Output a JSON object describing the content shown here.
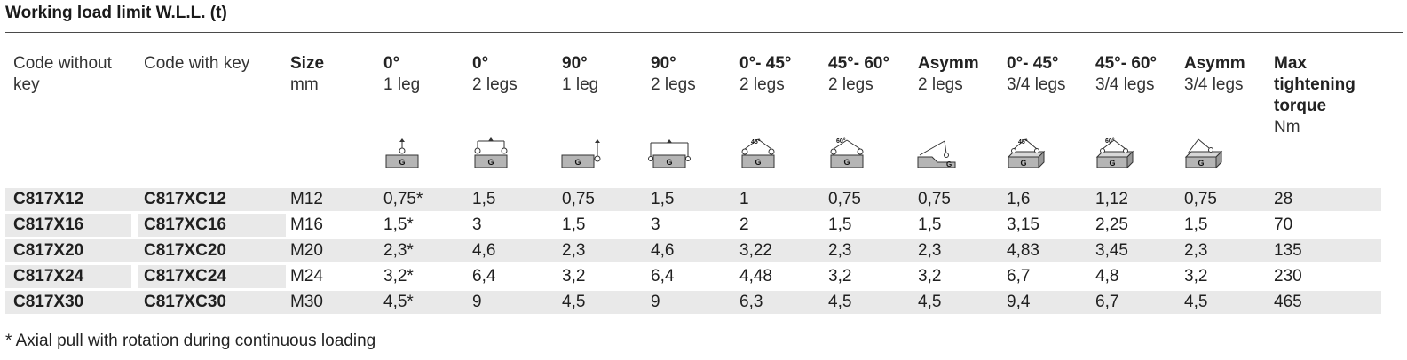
{
  "title": "Working load limit W.L.L. (t)",
  "headers": [
    {
      "bold": "Code without",
      "normal": "",
      "extra_bold": "key"
    },
    {
      "bold": "Code with key",
      "normal": ""
    },
    {
      "bold": "Size",
      "normal": "mm"
    },
    {
      "bold": "0°",
      "normal": "1 leg"
    },
    {
      "bold": "0°",
      "normal": "2 legs"
    },
    {
      "bold": "90°",
      "normal": "1 leg"
    },
    {
      "bold": "90°",
      "normal": "2 legs"
    },
    {
      "bold": "0°- 45°",
      "normal": "2 legs"
    },
    {
      "bold": "45°- 60°",
      "normal": "2 legs"
    },
    {
      "bold": "Asymm",
      "normal": "2 legs"
    },
    {
      "bold": "0°- 45°",
      "normal": "3/4 legs"
    },
    {
      "bold": "45°- 60°",
      "normal": "3/4 legs"
    },
    {
      "bold": "Asymm",
      "normal": "3/4 legs"
    },
    {
      "bold": "Max tightening torque",
      "normal": "Nm"
    }
  ],
  "header_lines": {
    "c0": [
      "Code without",
      "key"
    ],
    "c13": [
      "Max",
      "tightening",
      "torque"
    ]
  },
  "icon_letter": "G",
  "icon_angles": {
    "a45": "45°",
    "a60": "60°"
  },
  "rows": [
    [
      "C817X12",
      "C817XC12",
      "M12",
      "0,75*",
      "1,5",
      "0,75",
      "1,5",
      "1",
      "0,75",
      "0,75",
      "1,6",
      "1,12",
      "0,75",
      "28"
    ],
    [
      "C817X16",
      "C817XC16",
      "M16",
      "1,5*",
      "3",
      "1,5",
      "3",
      "2",
      "1,5",
      "1,5",
      "3,15",
      "2,25",
      "1,5",
      "70"
    ],
    [
      "C817X20",
      "C817XC20",
      "M20",
      "2,3*",
      "4,6",
      "2,3",
      "4,6",
      "3,22",
      "2,3",
      "2,3",
      "4,83",
      "3,45",
      "2,3",
      "135"
    ],
    [
      "C817X24",
      "C817XC24",
      "M24",
      "3,2*",
      "6,4",
      "3,2",
      "6,4",
      "4,48",
      "3,2",
      "3,2",
      "6,7",
      "4,8",
      "3,2",
      "230"
    ],
    [
      "C817X30",
      "C817XC30",
      "M30",
      "4,5*",
      "9",
      "4,5",
      "9",
      "6,3",
      "4,5",
      "4,5",
      "9,4",
      "6,7",
      "4,5",
      "465"
    ]
  ],
  "footnote": "* Axial pull with rotation during continuous loading",
  "colors": {
    "row_shade": "#e9e9e9",
    "rule": "#4a4a4a",
    "block": "#b5b5b5"
  }
}
